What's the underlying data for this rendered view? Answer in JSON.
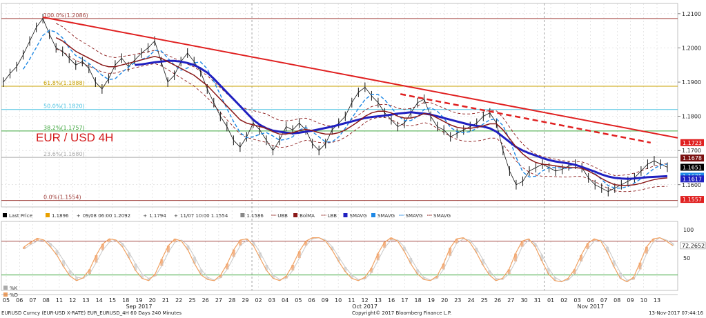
{
  "chart_data": {
    "type": "line",
    "title": "EUR / USD 4H",
    "grid": true,
    "price_axis": {
      "ylim": [
        1.1535,
        1.213
      ],
      "ticks": [
        "1.2100",
        "1.2000",
        "1.1900",
        "1.1800",
        "1.1700",
        "1.1600"
      ],
      "tags": [
        {
          "label": "1.1723",
          "value": 1.1723,
          "color": "#e02020"
        },
        {
          "label": "1.1678",
          "value": 1.1678,
          "color": "#7a1010"
        },
        {
          "label": "1.1651",
          "value": 1.1651,
          "color": "#000000"
        },
        {
          "label": "1.1625",
          "value": 1.1625,
          "color": "#1e88e5"
        },
        {
          "label": "1.1617",
          "value": 1.1617,
          "color": "#2020c0"
        },
        {
          "label": "1.1557",
          "value": 1.1557,
          "color": "#e02020"
        }
      ]
    },
    "fibonacci": [
      {
        "label": "100.0%(1.2086)",
        "value": 1.2086,
        "color": "#a0413d"
      },
      {
        "label": "61.8%(1.1888)",
        "value": 1.1888,
        "color": "#c9a100"
      },
      {
        "label": "50.0%(1.1820)",
        "value": 1.182,
        "color": "#4ac1e0"
      },
      {
        "label": "38.2%(1.1757)",
        "value": 1.1757,
        "color": "#3aa53a"
      },
      {
        "label": "23.6%(1.1680)",
        "value": 1.168,
        "color": "#aaaaaa"
      },
      {
        "label": "0.0%(1.1554)",
        "value": 1.1554,
        "color": "#a0413d"
      }
    ],
    "trendline": {
      "color": "#e02020",
      "points": [
        [
          0.061,
          1.209
        ],
        [
          1.0,
          1.1737
        ]
      ]
    },
    "trendline_dashed": {
      "color": "#e02020",
      "points": [
        [
          0.59,
          1.1865
        ],
        [
          0.96,
          1.1723
        ]
      ]
    },
    "series": [
      {
        "name": "Last Price",
        "color": "#111111",
        "values": [
          1.19,
          1.1925,
          1.1945,
          1.198,
          1.202,
          1.206,
          1.2086,
          1.204,
          1.2,
          1.199,
          1.197,
          1.195,
          1.196,
          1.194,
          1.19,
          1.188,
          1.191,
          1.195,
          1.197,
          1.1945,
          1.1965,
          1.1985,
          1.2,
          1.202,
          1.196,
          1.19,
          1.192,
          1.196,
          1.1985,
          1.196,
          1.193,
          1.188,
          1.184,
          1.18,
          1.177,
          1.173,
          1.171,
          1.174,
          1.178,
          1.176,
          1.173,
          1.17,
          1.173,
          1.177,
          1.176,
          1.178,
          1.176,
          1.172,
          1.17,
          1.172,
          1.176,
          1.178,
          1.18,
          1.184,
          1.187,
          1.1885,
          1.186,
          1.184,
          1.181,
          1.179,
          1.177,
          1.178,
          1.181,
          1.184,
          1.185,
          1.18,
          1.177,
          1.176,
          1.174,
          1.175,
          1.176,
          1.177,
          1.178,
          1.18,
          1.181,
          1.178,
          1.17,
          1.164,
          1.16,
          1.161,
          1.164,
          1.165,
          1.166,
          1.165,
          1.164,
          1.1645,
          1.1655,
          1.166,
          1.165,
          1.162,
          1.16,
          1.159,
          1.158,
          1.159,
          1.16,
          1.161,
          1.162,
          1.164,
          1.166,
          1.167,
          1.166,
          1.1651
        ]
      },
      {
        "name": "SMAVG",
        "color": "#2020c0",
        "values": [
          null,
          null,
          null,
          null,
          null,
          null,
          null,
          null,
          null,
          null,
          null,
          null,
          null,
          null,
          null,
          null,
          null,
          null,
          null,
          null,
          1.195,
          1.1952,
          1.1955,
          1.1958,
          1.196,
          1.1962,
          1.1962,
          1.196,
          1.1956,
          1.195,
          1.194,
          1.1928,
          1.191,
          1.189,
          1.187,
          1.185,
          1.183,
          1.181,
          1.179,
          1.1775,
          1.1765,
          1.1758,
          1.1755,
          1.1752,
          1.175,
          1.1752,
          1.1755,
          1.1758,
          1.1762,
          1.1766,
          1.177,
          1.1775,
          1.178,
          1.1785,
          1.179,
          1.1795,
          1.1798,
          1.18,
          1.1802,
          1.1805,
          1.1808,
          1.181,
          1.1812,
          1.181,
          1.1808,
          1.1805,
          1.18,
          1.1795,
          1.179,
          1.1785,
          1.178,
          1.1775,
          1.1772,
          1.177,
          1.1765,
          1.1755,
          1.174,
          1.1725,
          1.171,
          1.17,
          1.1692,
          1.1685,
          1.1678,
          1.1672,
          1.1668,
          1.1665,
          1.1662,
          1.1658,
          1.1652,
          1.1645,
          1.1638,
          1.163,
          1.1624,
          1.162,
          1.1618,
          1.1617,
          1.1618,
          1.162,
          1.1622,
          1.1623,
          1.1624,
          1.1625
        ]
      },
      {
        "name": "BolMA",
        "color": "#8b1a1a",
        "values": [
          null,
          null,
          null,
          null,
          null,
          null,
          null,
          null,
          1.203,
          1.202,
          1.2005,
          1.199,
          1.198,
          1.197,
          1.196,
          1.195,
          1.1945,
          1.1945,
          1.195,
          1.1955,
          1.196,
          1.1965,
          1.197,
          1.1975,
          1.197,
          1.196,
          1.195,
          1.194,
          1.193,
          1.192,
          1.1905,
          1.189,
          1.187,
          1.185,
          1.183,
          1.181,
          1.179,
          1.178,
          1.1775,
          1.177,
          1.1765,
          1.1755,
          1.1748,
          1.1748,
          1.1752,
          1.1758,
          1.1762,
          1.1758,
          1.1752,
          1.1748,
          1.1748,
          1.1752,
          1.176,
          1.1772,
          1.1785,
          1.18,
          1.181,
          1.1815,
          1.1815,
          1.181,
          1.18,
          1.1795,
          1.1795,
          1.18,
          1.1808,
          1.1805,
          1.1795,
          1.1785,
          1.1775,
          1.1768,
          1.1765,
          1.1765,
          1.1768,
          1.1772,
          1.1778,
          1.1778,
          1.176,
          1.1735,
          1.171,
          1.169,
          1.1675,
          1.1665,
          1.166,
          1.1658,
          1.1655,
          1.1652,
          1.165,
          1.165,
          1.1648,
          1.164,
          1.163,
          1.1618,
          1.1608,
          1.16,
          1.1598,
          1.1598,
          1.16,
          1.1604,
          1.161,
          1.1615,
          1.1618,
          1.162
        ]
      }
    ],
    "lower_panel": {
      "ylim": [
        0,
        110
      ],
      "ticks": [
        "100",
        "50"
      ],
      "reference_lines": [
        {
          "value": 80,
          "color": "#a0413d"
        },
        {
          "value": 20,
          "color": "#3aa53a"
        }
      ],
      "tag": {
        "label": "72.2652",
        "value": 72.2652
      },
      "series": [
        {
          "name": "%K",
          "color": "#f0a060",
          "values": [
            70,
            78,
            85,
            82,
            70,
            55,
            35,
            18,
            10,
            15,
            30,
            55,
            75,
            84,
            82,
            70,
            50,
            28,
            14,
            10,
            22,
            48,
            72,
            84,
            80,
            64,
            40,
            20,
            12,
            10,
            20,
            40,
            65,
            82,
            84,
            72,
            50,
            28,
            14,
            10,
            18,
            38,
            62,
            80,
            86,
            86,
            80,
            64,
            44,
            26,
            14,
            10,
            16,
            32,
            58,
            78,
            86,
            80,
            62,
            40,
            22,
            12,
            10,
            18,
            40,
            68,
            84,
            86,
            78,
            60,
            38,
            20,
            10,
            14,
            30,
            58,
            80,
            84,
            70,
            45,
            22,
            10,
            8,
            14,
            30,
            55,
            76,
            84,
            80,
            60,
            35,
            14,
            8,
            16,
            42,
            70,
            84,
            86,
            80,
            72
          ]
        },
        {
          "name": "%D",
          "color": "#c8c8c8",
          "values": [
            66,
            74,
            80,
            82,
            76,
            64,
            46,
            28,
            16,
            14,
            22,
            42,
            64,
            78,
            82,
            76,
            60,
            40,
            22,
            14,
            18,
            36,
            60,
            78,
            82,
            72,
            52,
            30,
            16,
            11,
            15,
            30,
            52,
            72,
            82,
            78,
            60,
            38,
            20,
            12,
            14,
            28,
            50,
            72,
            84,
            86,
            82,
            70,
            52,
            34,
            20,
            12,
            13,
            24,
            46,
            68,
            82,
            82,
            70,
            50,
            30,
            16,
            11,
            14,
            30,
            54,
            76,
            84,
            82,
            68,
            48,
            28,
            14,
            12,
            22,
            44,
            70,
            82,
            76,
            56,
            32,
            16,
            9,
            11,
            22,
            44,
            66,
            80,
            82,
            70,
            46,
            24,
            11,
            12,
            30,
            58,
            78,
            86,
            82,
            76
          ]
        }
      ]
    },
    "legend_top": [
      {
        "label": "Last Price",
        "color": "#000000",
        "kind": "box"
      },
      {
        "label": "1.1896",
        "color": "#e8a000",
        "kind": "box"
      },
      {
        "label": "09/08 06:00 1.2092",
        "color": "#888888",
        "kind": "plus"
      },
      {
        "label": "1.1794",
        "color": "#888888",
        "kind": "plus"
      },
      {
        "label": "11/07 10:00 1.1554",
        "color": "#888888",
        "kind": "plus"
      },
      {
        "label": "1.1586",
        "color": "#888888",
        "kind": "box"
      },
      {
        "label": "UBB",
        "color": "#a0413d",
        "kind": "dash"
      },
      {
        "label": "BolMA",
        "color": "#8b1a1a",
        "kind": "box"
      },
      {
        "label": "LBB",
        "color": "#a0413d",
        "kind": "dash"
      },
      {
        "label": "SMAVG",
        "color": "#2020c0",
        "kind": "box"
      },
      {
        "label": "SMAVG",
        "color": "#1e88e5",
        "kind": "box"
      },
      {
        "label": "SMAVG",
        "color": "#1e88e5",
        "kind": "dash"
      },
      {
        "label": "SMAVG",
        "color": "#a0413d",
        "kind": "dash"
      }
    ],
    "legend_bottom": [
      {
        "label": "%K",
        "color": "#aaaaaa"
      },
      {
        "label": "%D",
        "color": "#f0a060"
      }
    ],
    "x_axis": {
      "days": [
        "05",
        "06",
        "07",
        "08",
        "11",
        "12",
        "13",
        "14",
        "15",
        "18",
        "19",
        "20",
        "21",
        "22",
        "25",
        "26",
        "27",
        "28",
        "29",
        "02",
        "03",
        "04",
        "05",
        "06",
        "09",
        "10",
        "11",
        "12",
        "13",
        "16",
        "17",
        "18",
        "19",
        "20",
        "23",
        "24",
        "25",
        "26",
        "27",
        "30",
        "31",
        "01",
        "02",
        "03",
        "06",
        "07",
        "08",
        "09",
        "10",
        "13"
      ],
      "months": [
        {
          "label": "Sep 2017",
          "day_index": 10
        },
        {
          "label": "Oct 2017",
          "day_index": 27
        },
        {
          "label": "Nov 2017",
          "day_index": 44
        }
      ],
      "month_boundaries": [
        19,
        41
      ]
    }
  },
  "footer": {
    "left": "EURUSD Curncy (EUR-USD X-RATE) EUR_EURUSD_4H 60 Days 240 Minutes",
    "center": "Copyright© 2017 Bloomberg Finance L.P.",
    "right": "13-Nov-2017 07:44:16"
  }
}
